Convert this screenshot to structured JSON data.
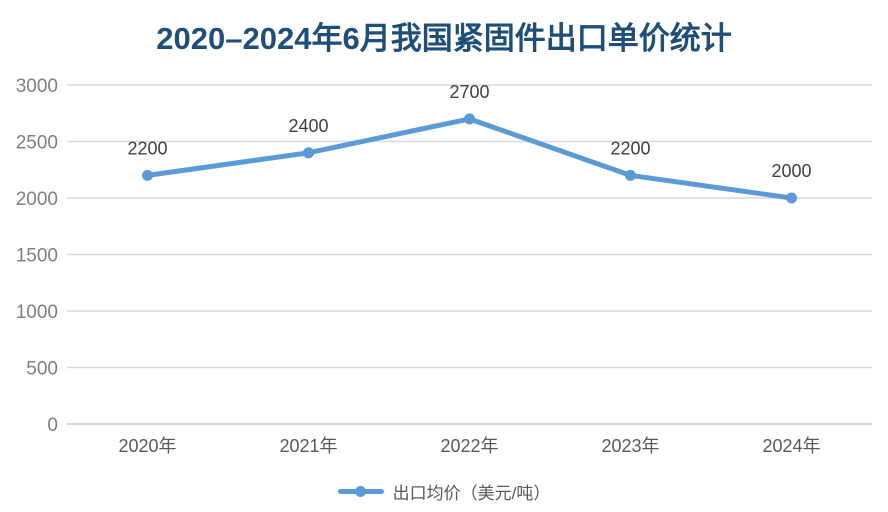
{
  "title": "2020–2024年6月我国紧固件出口单价统计",
  "legend": {
    "label": "出口均价（美元/吨）"
  },
  "colors": {
    "line": "#5B9BD5",
    "marker": "#5B9BD5",
    "title": "#1F4E79",
    "gridline": "#D9D9D9",
    "zero_line": "#C9C9C9",
    "y_tick_label": "#7F7F7F",
    "x_tick_label": "#595959",
    "data_label": "#404040",
    "legend_text": "#595959",
    "background": "#FFFFFF"
  },
  "chart_data": {
    "type": "line",
    "title": "2020–2024年6月我国紧固件出口单价统计",
    "categories": [
      "2020年",
      "2021年",
      "2022年",
      "2023年",
      "2024年"
    ],
    "series": [
      {
        "name": "出口均价（美元/吨）",
        "values": [
          2200,
          2400,
          2700,
          2200,
          2000
        ]
      }
    ],
    "data_labels": [
      "2200",
      "2400",
      "2700",
      "2200",
      "2000"
    ],
    "xlabel": "",
    "ylabel": "",
    "ylim": [
      0,
      3000
    ],
    "yticks": [
      0,
      500,
      1000,
      1500,
      2000,
      2500,
      3000
    ],
    "grid": "horizontal",
    "legend_position": "bottom"
  }
}
